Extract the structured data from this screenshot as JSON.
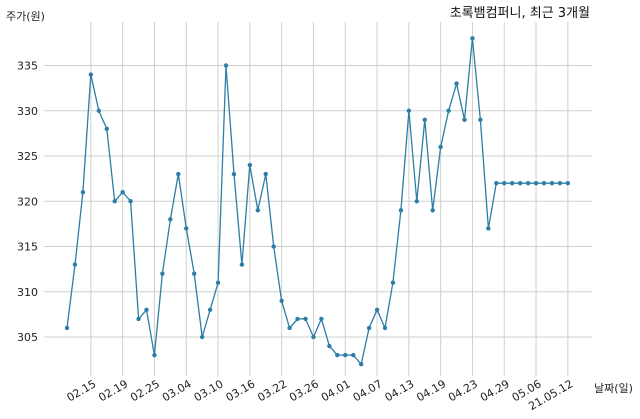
{
  "chart_data": {
    "type": "line",
    "title": "초록뱀컴퍼니, 최근 3개월",
    "xlabel": "날짜(일)",
    "ylabel": "주가(원)",
    "ylim": [
      300,
      340
    ],
    "yticks": [
      305,
      310,
      315,
      320,
      325,
      330,
      335
    ],
    "xtick_labels": [
      "02.15",
      "02.19",
      "02.25",
      "03.04",
      "03.10",
      "03.16",
      "03.22",
      "03.26",
      "04.01",
      "04.07",
      "04.13",
      "04.19",
      "04.23",
      "04.29",
      "05.06",
      "21.05.12"
    ],
    "xtick_indices": [
      3,
      7,
      11,
      15,
      19,
      23,
      27,
      31,
      35,
      39,
      43,
      47,
      51,
      55,
      59,
      63
    ],
    "grid": true,
    "color": "#2e7da6",
    "series": [
      {
        "values": [
          306,
          313,
          321,
          334,
          330,
          328,
          320,
          321,
          320,
          307,
          308,
          303,
          312,
          318,
          323,
          317,
          312,
          305,
          308,
          311,
          335,
          323,
          313,
          324,
          319,
          323,
          315,
          309,
          306,
          307,
          307,
          305,
          307,
          304,
          303,
          303,
          303,
          302,
          306,
          308,
          306,
          311,
          319,
          330,
          320,
          329,
          319,
          326,
          330,
          333,
          329,
          338,
          329,
          317,
          322,
          322,
          322,
          322,
          322,
          322,
          322,
          322,
          322,
          322
        ]
      }
    ]
  }
}
